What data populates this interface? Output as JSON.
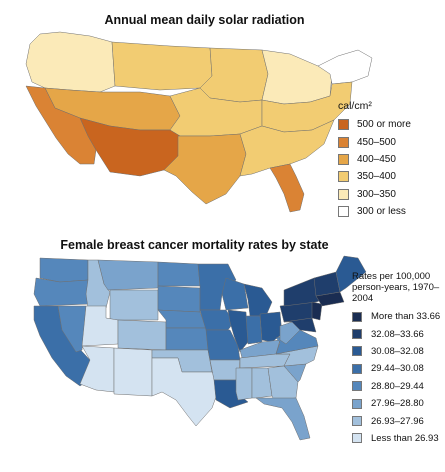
{
  "map1": {
    "title": "Annual mean daily solar radiation",
    "legend_title": "cal/cm²",
    "classes": [
      {
        "label": "500 or more",
        "color": "#c9651f"
      },
      {
        "label": "450–500",
        "color": "#da8334"
      },
      {
        "label": "400–450",
        "color": "#e5a648"
      },
      {
        "label": "350–400",
        "color": "#f2cc72"
      },
      {
        "label": "300–350",
        "color": "#fbeab8"
      },
      {
        "label": "300 or less",
        "color": "#ffffff"
      }
    ],
    "regions": [
      {
        "id": "north-pacific",
        "class": 4
      },
      {
        "id": "northern-rockies",
        "class": 3
      },
      {
        "id": "northern-plains",
        "class": 3
      },
      {
        "id": "great-lakes",
        "class": 4
      },
      {
        "id": "new-england",
        "class": 5
      },
      {
        "id": "central-west",
        "class": 2
      },
      {
        "id": "central-plains",
        "class": 3
      },
      {
        "id": "mid-atlantic",
        "class": 3
      },
      {
        "id": "california",
        "class": 1
      },
      {
        "id": "desert-southwest",
        "class": 0
      },
      {
        "id": "texas-oklahoma",
        "class": 2
      },
      {
        "id": "southeast",
        "class": 3
      },
      {
        "id": "florida",
        "class": 1
      }
    ]
  },
  "map2": {
    "title": "Female breast cancer mortality rates by state",
    "legend_title": "Rates per 100,000 person-years, 1970–2004",
    "classes": [
      {
        "label": "More than 33.66",
        "color": "#1a2d52"
      },
      {
        "label": "32.08–33.66",
        "color": "#1f3e6c"
      },
      {
        "label": "30.08–32.08",
        "color": "#2a5a93"
      },
      {
        "label": "29.44–30.08",
        "color": "#3b6fa8"
      },
      {
        "label": "28.80–29.44",
        "color": "#5587bb"
      },
      {
        "label": "27.96–28.80",
        "color": "#7aa3cc"
      },
      {
        "label": "26.93–27.96",
        "color": "#a2c0dc"
      },
      {
        "label": "Less than 26.93",
        "color": "#d4e3f1"
      }
    ],
    "regions": [
      {
        "id": "washington",
        "class": 4
      },
      {
        "id": "oregon",
        "class": 4
      },
      {
        "id": "california",
        "class": 3
      },
      {
        "id": "nevada",
        "class": 4
      },
      {
        "id": "idaho",
        "class": 6
      },
      {
        "id": "montana",
        "class": 5
      },
      {
        "id": "wyoming",
        "class": 6
      },
      {
        "id": "utah",
        "class": 7
      },
      {
        "id": "colorado",
        "class": 6
      },
      {
        "id": "arizona",
        "class": 7
      },
      {
        "id": "new-mexico",
        "class": 7
      },
      {
        "id": "north-dakota",
        "class": 4
      },
      {
        "id": "south-dakota",
        "class": 4
      },
      {
        "id": "nebraska",
        "class": 4
      },
      {
        "id": "kansas",
        "class": 4
      },
      {
        "id": "oklahoma",
        "class": 6
      },
      {
        "id": "texas",
        "class": 7
      },
      {
        "id": "minnesota",
        "class": 3
      },
      {
        "id": "iowa",
        "class": 3
      },
      {
        "id": "missouri",
        "class": 3
      },
      {
        "id": "arkansas",
        "class": 6
      },
      {
        "id": "louisiana",
        "class": 2
      },
      {
        "id": "wisconsin",
        "class": 3
      },
      {
        "id": "michigan",
        "class": 2
      },
      {
        "id": "illinois",
        "class": 2
      },
      {
        "id": "indiana",
        "class": 3
      },
      {
        "id": "ohio",
        "class": 2
      },
      {
        "id": "kentucky",
        "class": 5
      },
      {
        "id": "tennessee",
        "class": 6
      },
      {
        "id": "mississippi",
        "class": 6
      },
      {
        "id": "alabama",
        "class": 6
      },
      {
        "id": "georgia",
        "class": 6
      },
      {
        "id": "florida",
        "class": 5
      },
      {
        "id": "south-carolina",
        "class": 5
      },
      {
        "id": "north-carolina",
        "class": 6
      },
      {
        "id": "virginia",
        "class": 4
      },
      {
        "id": "west-virginia",
        "class": 5
      },
      {
        "id": "pennsylvania",
        "class": 1
      },
      {
        "id": "new-york",
        "class": 1
      },
      {
        "id": "new-jersey",
        "class": 0
      },
      {
        "id": "maryland",
        "class": 1
      },
      {
        "id": "new-england-south",
        "class": 0
      },
      {
        "id": "vermont-nh",
        "class": 1
      },
      {
        "id": "maine",
        "class": 2
      }
    ]
  }
}
